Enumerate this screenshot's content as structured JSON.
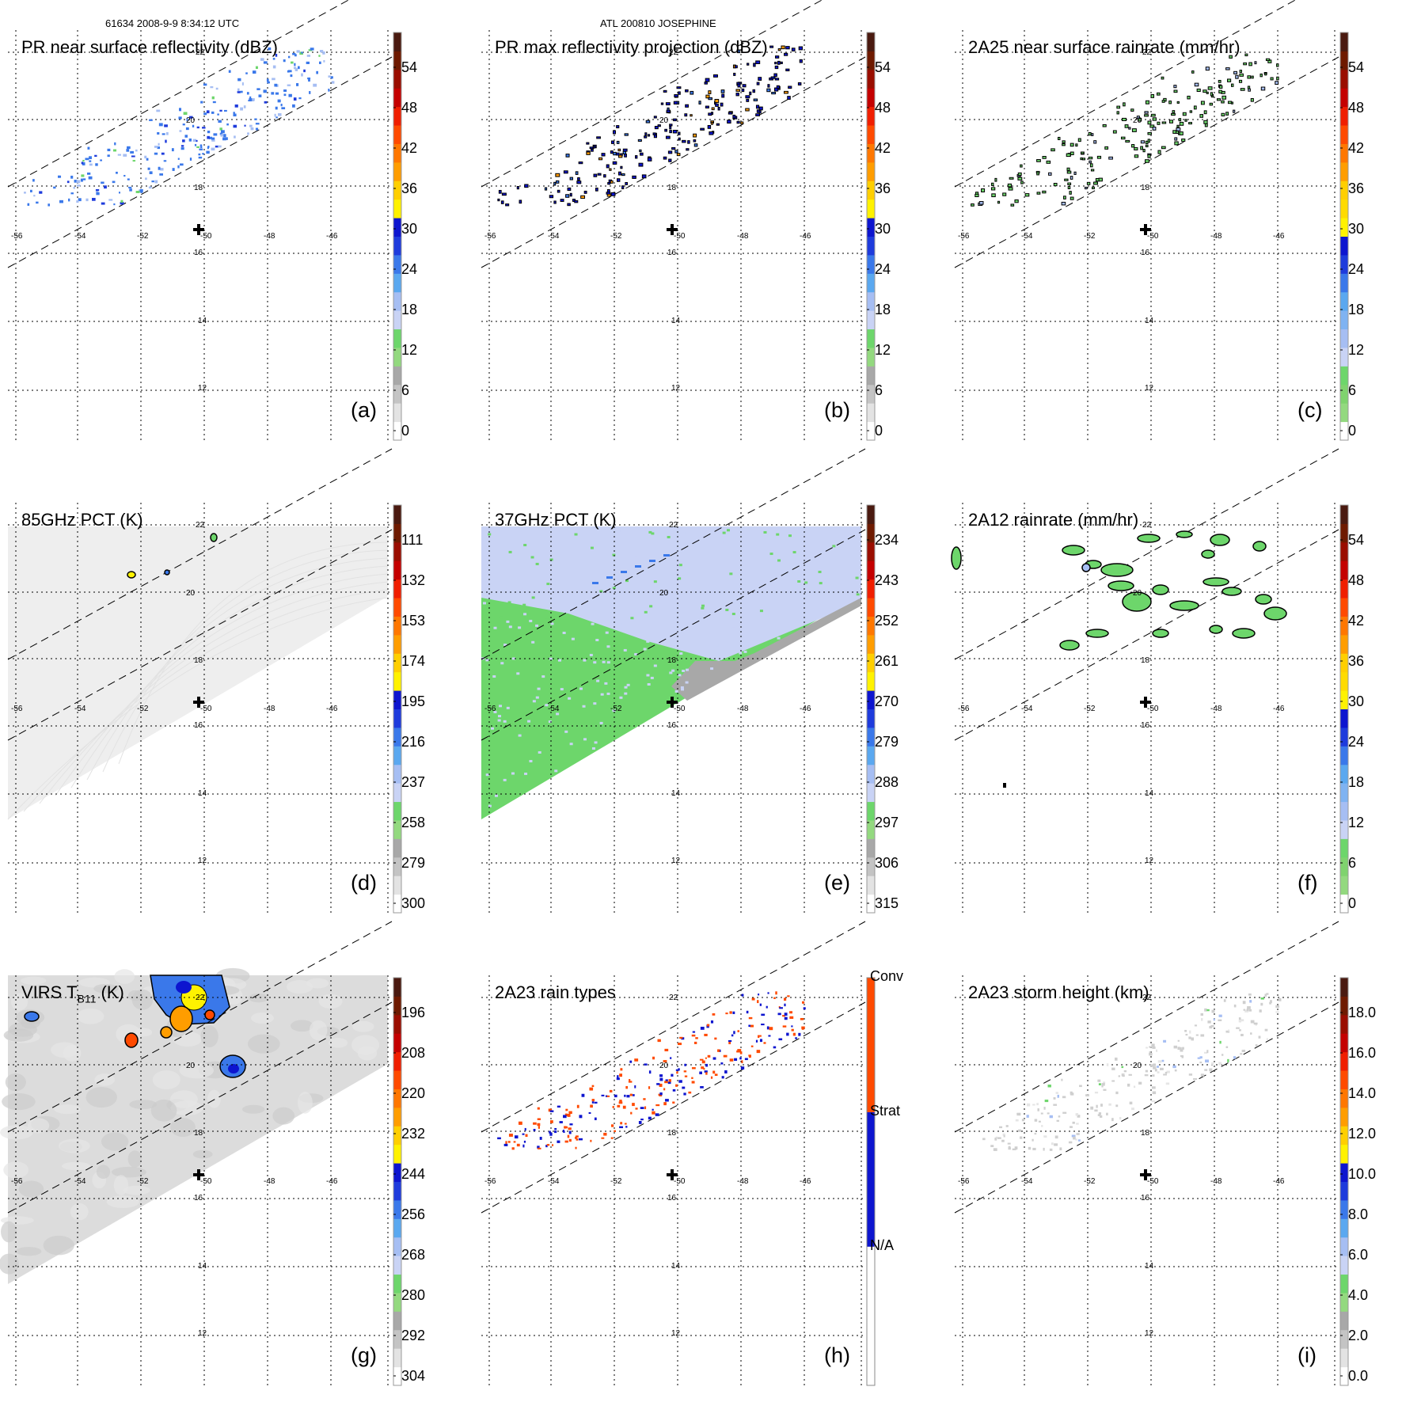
{
  "header": {
    "left": "61634 2008-9-9 8:34:12 UTC",
    "center": "ATL 200810 JOSEPHINE"
  },
  "grid": {
    "lon_labels": [
      "-56",
      "-54",
      "-52",
      "-50",
      "-48",
      "-46"
    ],
    "lat_labels": [
      "22",
      "20",
      "18",
      "16",
      "14",
      "12"
    ]
  },
  "chart_data": [
    {
      "panel": "a",
      "type": "heatmap",
      "title": "PR near surface reflectivity (dBZ)",
      "letter": "(a)",
      "colorbar": {
        "ticks": [
          "54",
          "48",
          "42",
          "36",
          "30",
          "24",
          "18",
          "12",
          "6",
          "0"
        ],
        "range": [
          0,
          60
        ]
      }
    },
    {
      "panel": "b",
      "type": "heatmap",
      "title": "PR max reflectivity projection (dBZ)",
      "letter": "(b)",
      "colorbar": {
        "ticks": [
          "54",
          "48",
          "42",
          "36",
          "30",
          "24",
          "18",
          "12",
          "6",
          "0"
        ],
        "range": [
          0,
          60
        ]
      }
    },
    {
      "panel": "c",
      "type": "heatmap",
      "title": "2A25 near surface rainrate (mm/hr)",
      "letter": "(c)",
      "colorbar": {
        "ticks": [
          "54",
          "48",
          "42",
          "36",
          "30",
          "24",
          "18",
          "12",
          "6",
          "0"
        ],
        "range": [
          0,
          60
        ]
      }
    },
    {
      "panel": "d",
      "type": "heatmap",
      "title": "85GHz PCT (K)",
      "letter": "(d)",
      "colorbar": {
        "ticks": [
          "111",
          "132",
          "153",
          "174",
          "195",
          "216",
          "237",
          "258",
          "279",
          "300"
        ],
        "range": [
          300,
          90
        ]
      }
    },
    {
      "panel": "e",
      "type": "heatmap",
      "title": "37GHz PCT (K)",
      "letter": "(e)",
      "colorbar": {
        "ticks": [
          "234",
          "243",
          "252",
          "261",
          "270",
          "279",
          "288",
          "297",
          "306",
          "315"
        ],
        "range": [
          315,
          225
        ]
      }
    },
    {
      "panel": "f",
      "type": "heatmap",
      "title": "2A12 rainrate (mm/hr)",
      "letter": "(f)",
      "colorbar": {
        "ticks": [
          "54",
          "48",
          "42",
          "36",
          "30",
          "24",
          "18",
          "12",
          "6",
          "0"
        ],
        "range": [
          0,
          60
        ]
      }
    },
    {
      "panel": "g",
      "type": "heatmap",
      "title_main": "VIRS T",
      "title_sub": "B11",
      "title_unit": " (K)",
      "letter": "(g)",
      "colorbar": {
        "ticks": [
          "196",
          "208",
          "220",
          "232",
          "244",
          "256",
          "268",
          "280",
          "292",
          "304"
        ],
        "range": [
          304,
          184
        ]
      }
    },
    {
      "panel": "h",
      "type": "heatmap",
      "title": "2A23 rain types",
      "letter": "(h)",
      "colorbar": {
        "ticks": [
          "Conv",
          "Strat",
          "N/A"
        ],
        "categories": [
          "N/A",
          "Strat",
          "Conv"
        ]
      }
    },
    {
      "panel": "i",
      "type": "heatmap",
      "title": "2A23 storm height (km)",
      "letter": "(i)",
      "colorbar": {
        "ticks": [
          "18.0",
          "16.0",
          "14.0",
          "12.0",
          "10.0",
          "8.0",
          "6.0",
          "4.0",
          "2.0",
          "0.0"
        ],
        "range": [
          0,
          20
        ]
      }
    }
  ]
}
